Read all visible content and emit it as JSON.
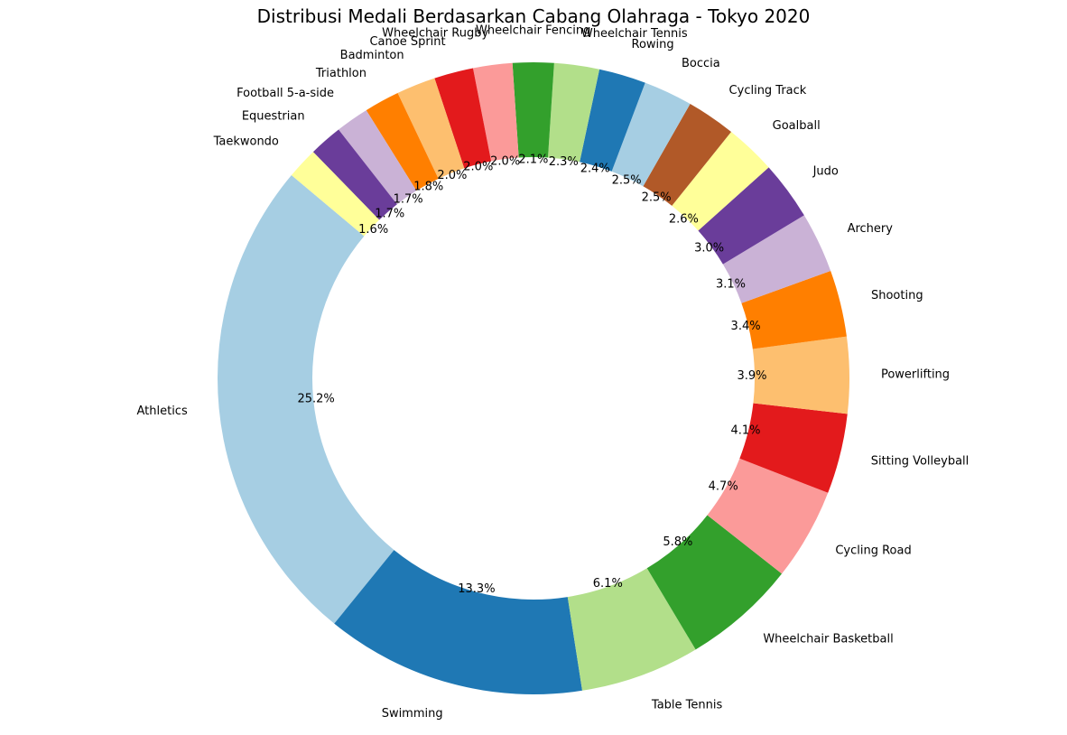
{
  "chart_data": {
    "type": "pie",
    "variant": "donut",
    "title": "Distribusi Medali Berdasarkan Cabang Olahraga - Tokyo 2020",
    "value_unit": "percent",
    "start_angle_deg": 140,
    "direction": "counterclockwise",
    "slices": [
      {
        "label": "Athletics",
        "value": 25.2,
        "pct_label": "25.2%",
        "color": "#a6cee3"
      },
      {
        "label": "Swimming",
        "value": 13.3,
        "pct_label": "13.3%",
        "color": "#1f78b4"
      },
      {
        "label": "Table Tennis",
        "value": 6.1,
        "pct_label": "6.1%",
        "color": "#b2df8a"
      },
      {
        "label": "Wheelchair Basketball",
        "value": 5.8,
        "pct_label": "5.8%",
        "color": "#33a02c"
      },
      {
        "label": "Cycling Road",
        "value": 4.7,
        "pct_label": "4.7%",
        "color": "#fb9a99"
      },
      {
        "label": "Sitting Volleyball",
        "value": 4.1,
        "pct_label": "4.1%",
        "color": "#e31a1c"
      },
      {
        "label": "Powerlifting",
        "value": 3.9,
        "pct_label": "3.9%",
        "color": "#fdbf6f"
      },
      {
        "label": "Shooting",
        "value": 3.4,
        "pct_label": "3.4%",
        "color": "#ff7f00"
      },
      {
        "label": "Archery",
        "value": 3.1,
        "pct_label": "3.1%",
        "color": "#cab2d6"
      },
      {
        "label": "Judo",
        "value": 3.0,
        "pct_label": "3.0%",
        "color": "#6a3d9a"
      },
      {
        "label": "Goalball",
        "value": 2.6,
        "pct_label": "2.6%",
        "color": "#ffff99"
      },
      {
        "label": "Cycling Track",
        "value": 2.5,
        "pct_label": "2.5%",
        "color": "#b15928"
      },
      {
        "label": "Boccia",
        "value": 2.5,
        "pct_label": "2.5%",
        "color": "#a6cee3"
      },
      {
        "label": "Rowing",
        "value": 2.4,
        "pct_label": "2.4%",
        "color": "#1f78b4"
      },
      {
        "label": "Wheelchair Tennis",
        "value": 2.3,
        "pct_label": "2.3%",
        "color": "#b2df8a"
      },
      {
        "label": "Wheelchair Fencing",
        "value": 2.1,
        "pct_label": "2.1%",
        "color": "#33a02c"
      },
      {
        "label": "Wheelchair Rugby",
        "value": 2.0,
        "pct_label": "2.0%",
        "color": "#fb9a99"
      },
      {
        "label": "Canoe Sprint",
        "value": 2.0,
        "pct_label": "2.0%",
        "color": "#e31a1c"
      },
      {
        "label": "Badminton",
        "value": 2.0,
        "pct_label": "2.0%",
        "color": "#fdbf6f"
      },
      {
        "label": "Triathlon",
        "value": 1.8,
        "pct_label": "1.8%",
        "color": "#ff7f00"
      },
      {
        "label": "Football 5-a-side",
        "value": 1.7,
        "pct_label": "1.7%",
        "color": "#cab2d6"
      },
      {
        "label": "Equestrian",
        "value": 1.7,
        "pct_label": "1.7%",
        "color": "#6a3d9a"
      },
      {
        "label": "Taekwondo",
        "value": 1.6,
        "pct_label": "1.6%",
        "color": "#ffff99"
      }
    ]
  }
}
